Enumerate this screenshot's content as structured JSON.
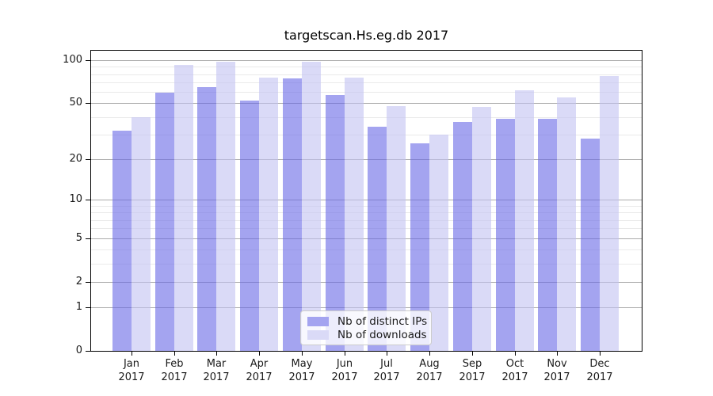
{
  "chart_data": {
    "type": "bar",
    "title": "targetscan.Hs.eg.db 2017",
    "categories": [
      "Jan 2017",
      "Feb 2017",
      "Mar 2017",
      "Apr 2017",
      "May 2017",
      "Jun 2017",
      "Jul 2017",
      "Aug 2017",
      "Sep 2017",
      "Oct 2017",
      "Nov 2017",
      "Dec 2017"
    ],
    "months": [
      "Jan",
      "Feb",
      "Mar",
      "Apr",
      "May",
      "Jun",
      "Jul",
      "Aug",
      "Sep",
      "Oct",
      "Nov",
      "Dec"
    ],
    "year": "2017",
    "series": [
      {
        "name": "Nb of distinct IPs",
        "color": "#a4a4f0",
        "values": [
          32,
          59,
          65,
          52,
          75,
          57,
          34,
          26,
          37,
          39,
          39,
          28
        ]
      },
      {
        "name": "Nb of downloads",
        "color": "#dadaf7",
        "values": [
          40,
          93,
          97,
          76,
          98,
          76,
          48,
          30,
          47,
          62,
          55,
          78
        ]
      }
    ],
    "y_scale": "log10(1+x)",
    "y_ticks": [
      0,
      1,
      2,
      5,
      10,
      20,
      50,
      100
    ],
    "y_minor_gridlines": [
      3,
      4,
      6,
      7,
      8,
      9,
      30,
      40,
      60,
      70,
      80,
      90
    ],
    "ylim": [
      0,
      100
    ],
    "grid": true,
    "legend_position": "bottom-center"
  },
  "colors": {
    "bar_distinct_ips": "#a4a4f0",
    "bar_downloads": "#dadaf7",
    "bar_fill_distinct_ips": "rgba(103,103,230,0.6)",
    "bar_fill_downloads": "rgba(193,193,242,0.6)",
    "grid_major": "#ababab",
    "grid_minor": "#eaeaea",
    "axis": "#000000",
    "text": "#1a1a1a",
    "legend_border": "#cccccc",
    "legend_background": "rgba(255,255,255,0.8)",
    "background": "#ffffff"
  }
}
